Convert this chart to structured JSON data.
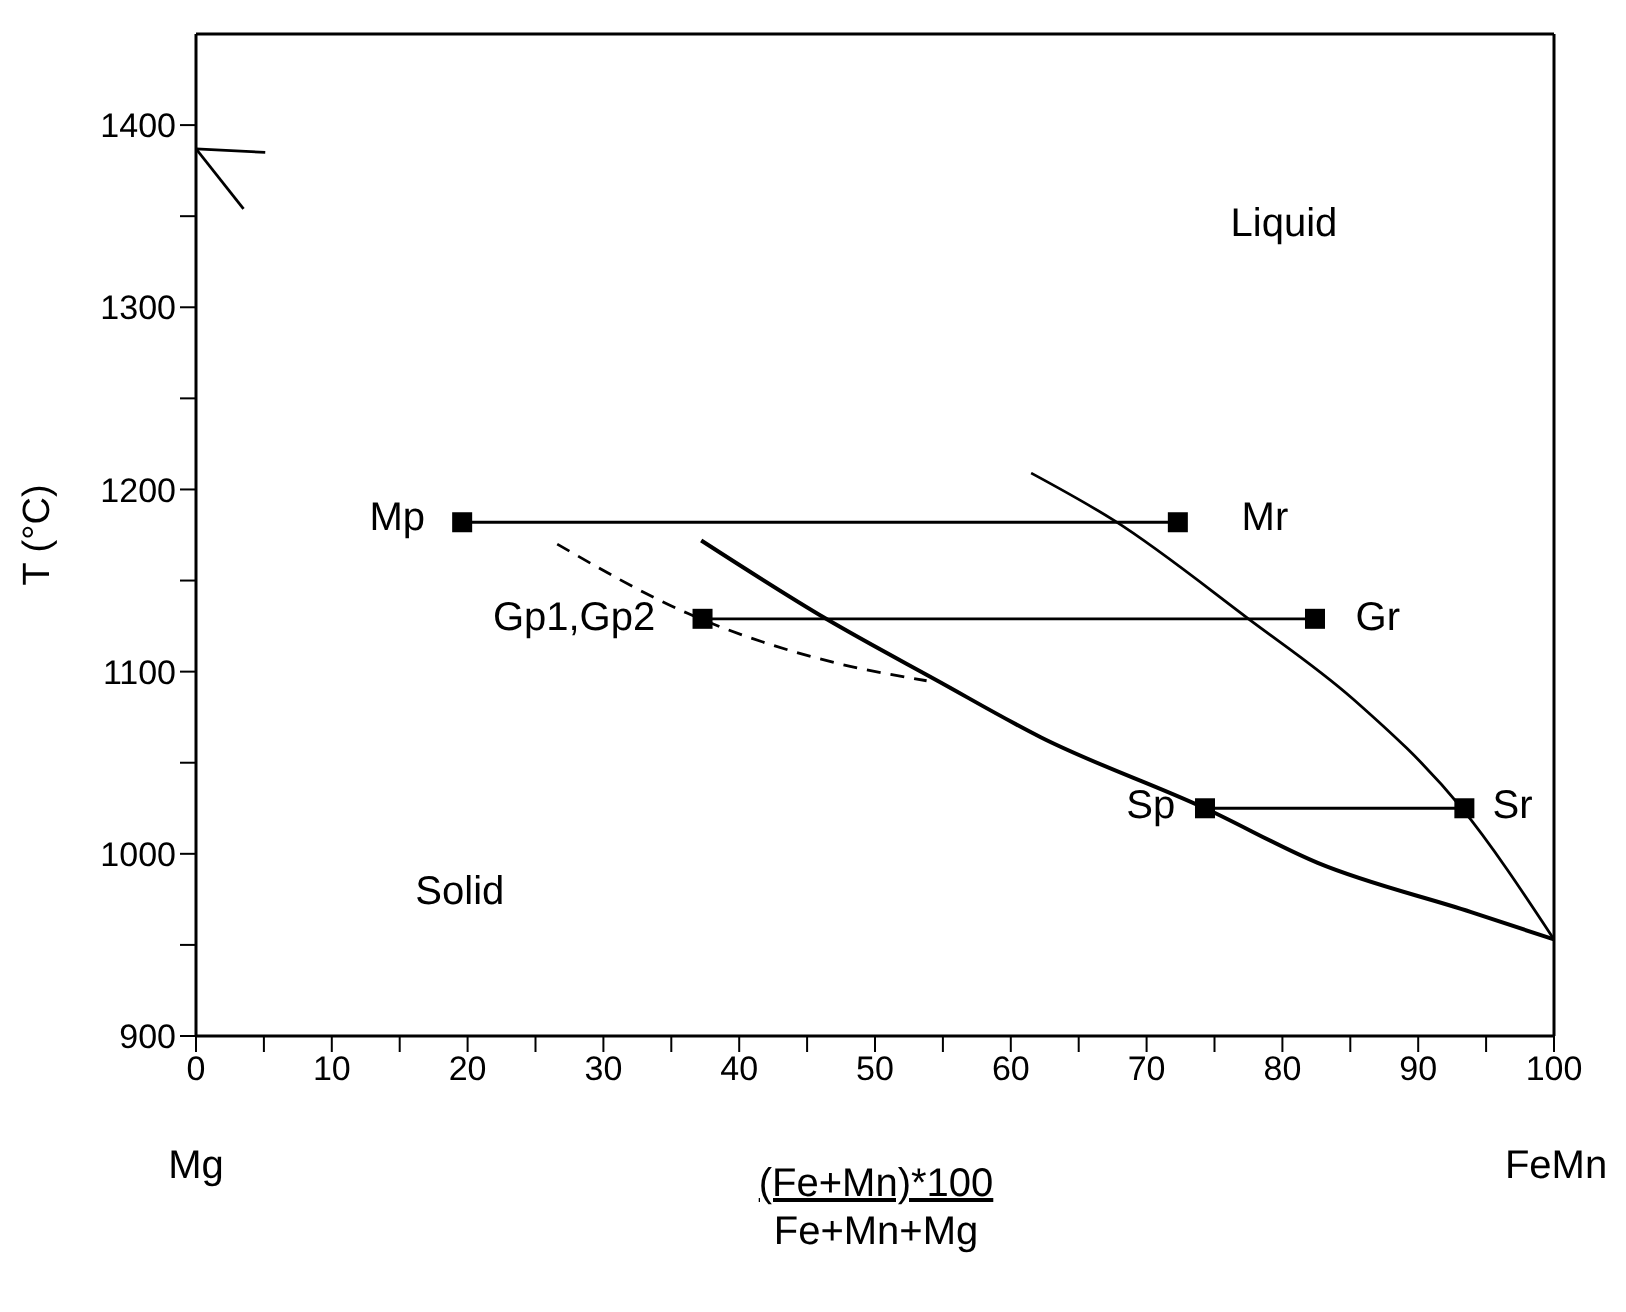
{
  "chart_data": {
    "type": "line",
    "xlabel": "(Fe+Mn)*100\nFe+Mn+Mg",
    "ylabel": "T (°C)",
    "xlim": [
      0,
      100
    ],
    "ylim": [
      900,
      1450
    ],
    "xticks": [
      0,
      {
        "value": 5,
        "label": null
      },
      10,
      {
        "value": 15,
        "label": null
      },
      20,
      {
        "value": 25,
        "label": null
      },
      30,
      {
        "value": 35,
        "label": null
      },
      40,
      {
        "value": 45,
        "label": null
      },
      50,
      {
        "value": 55,
        "label": null
      },
      60,
      {
        "value": 65,
        "label": null
      },
      70,
      {
        "value": 75,
        "label": null
      },
      80,
      {
        "value": 85,
        "label": null
      },
      90,
      {
        "value": 95,
        "label": null
      },
      100
    ],
    "yticks": [
      900,
      {
        "value": 950,
        "label": null
      },
      1000,
      {
        "value": 1050,
        "label": null
      },
      1100,
      {
        "value": 1150,
        "label": null
      },
      1200,
      {
        "value": 1250,
        "label": null
      },
      1300,
      {
        "value": 1350,
        "label": null
      },
      1400
    ],
    "series": [
      {
        "color": "#000000",
        "marker": "square",
        "line_style": "solid",
        "x": [
          19.6,
          72.3
        ],
        "values": [
          1182,
          1182
        ]
      },
      {
        "color": "#000000",
        "marker": "square",
        "line_style": "solid",
        "x": [
          37.3,
          82.4
        ],
        "values": [
          1129,
          1129
        ]
      },
      {
        "color": "#000000",
        "marker": "square",
        "line_style": "solid",
        "x": [
          74.3,
          93.4
        ],
        "values": [
          1025,
          1025
        ]
      },
      {
        "color": "#000000",
        "marker": "none",
        "line_style": "solid",
        "x": [
          37.2,
          46.4,
          54.6,
          62.2,
          74.3,
          82.6,
          93.9,
          100
        ],
        "values": [
          1172,
          1129,
          1095,
          1064,
          1025,
          995,
          968,
          953
        ]
      },
      {
        "color": "#000000",
        "marker": "none",
        "line_style": "solid",
        "x": [
          61.5,
          67.6,
          77.5,
          85.2,
          93.1,
          100
        ],
        "values": [
          1209,
          1183,
          1129,
          1085,
          1026,
          953
        ]
      },
      {
        "color": "#000000",
        "marker": "none",
        "line_style": "dashed",
        "x": [
          26.6,
          36.2,
          47,
          53.8
        ],
        "values": [
          1170,
          1132,
          1105,
          1095
        ]
      },
      {
        "color": "#000000",
        "marker": "none",
        "line_style": "solid",
        "x": [
          0,
          5.1
        ],
        "values": [
          1387,
          1385
        ]
      },
      {
        "color": "#000000",
        "marker": "none",
        "line_style": "solid",
        "x": [
          0,
          3.5
        ],
        "values": [
          1387,
          1354
        ]
      }
    ],
    "annotations": [
      "Liquid",
      "Solid",
      "Mp",
      "Mr",
      "Gp1,Gp2",
      "Gr",
      "Sp",
      "Sr",
      "Mg",
      "FeMn"
    ]
  }
}
